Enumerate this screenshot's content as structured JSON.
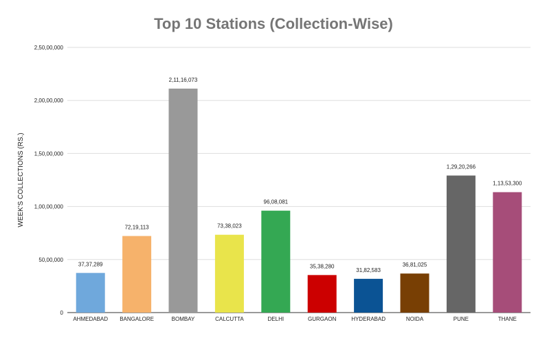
{
  "chart_data": {
    "type": "bar",
    "title": "Top 10 Stations (Collection-Wise)",
    "xlabel": "",
    "ylabel": "WEEK'S COLLECTIONS (RS.)",
    "ylim": [
      0,
      25000000
    ],
    "yticks": [
      {
        "value": 0,
        "label": "0"
      },
      {
        "value": 5000000,
        "label": "50,00,000"
      },
      {
        "value": 10000000,
        "label": "1,00,00,000"
      },
      {
        "value": 15000000,
        "label": "1,50,00,000"
      },
      {
        "value": 20000000,
        "label": "2,00,00,000"
      },
      {
        "value": 25000000,
        "label": "2,50,00,000"
      }
    ],
    "grid": true,
    "legend": "none",
    "categories": [
      "AHMEDABAD",
      "BANGALORE",
      "BOMBAY",
      "CALCUTTA",
      "DELHI",
      "GURGAON",
      "HYDERABAD",
      "NOIDA",
      "PUNE",
      "THANE"
    ],
    "values": [
      3737289,
      7219113,
      21116073,
      7338023,
      9608081,
      3538280,
      3182583,
      3681025,
      12920266,
      11353300
    ],
    "data_labels": [
      "37,37,289",
      "72,19,113",
      "2,11,16,073",
      "73,38,023",
      "96,08,081",
      "35,38,280",
      "31,82,583",
      "36,81,025",
      "1,29,20,266",
      "1,13,53,300"
    ],
    "colors": [
      "#6fa8dc",
      "#f6b26b",
      "#999999",
      "#e9e44b",
      "#34a853",
      "#cc0000",
      "#0b5394",
      "#783f04",
      "#666666",
      "#a64d79"
    ]
  }
}
